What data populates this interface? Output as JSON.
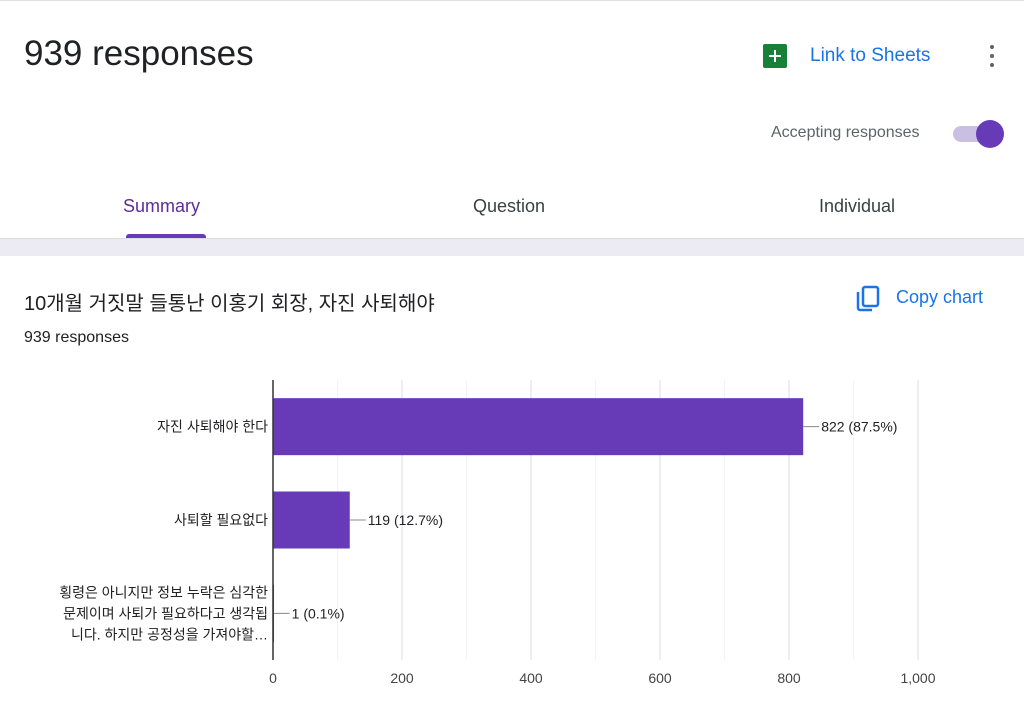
{
  "header": {
    "title": "939 responses",
    "link_sheets_label": "Link to Sheets",
    "accepting_label": "Accepting responses",
    "accepting_on": true
  },
  "tabs": [
    {
      "label": "Summary",
      "active": true
    },
    {
      "label": "Question",
      "active": false
    },
    {
      "label": "Individual",
      "active": false
    }
  ],
  "question": {
    "title": "10개월 거짓말 들통난 이홍기 회장, 자진 사퇴해야",
    "copy_chart_label": "Copy chart",
    "response_count": "939 responses"
  },
  "colors": {
    "accent": "#673ab7",
    "link": "#1a73e8",
    "sheets_green": "#188038"
  },
  "icons": [
    "sheets-icon",
    "more-vert-icon",
    "copy-icon"
  ],
  "chart_data": {
    "type": "bar",
    "orientation": "horizontal",
    "categories": [
      [
        "자진 사퇴해야 한다"
      ],
      [
        "사퇴할 필요없다"
      ],
      [
        "횡령은 아니지만 정보 누락은 심각한",
        "문제이며 사퇴가 필요하다고 생각됩",
        "니다. 하지만 공정성을 가져야할…"
      ]
    ],
    "values": [
      822,
      119,
      1
    ],
    "data_labels": [
      "822 (87.5%)",
      "119 (12.7%)",
      "1 (0.1%)"
    ],
    "xlim": [
      0,
      1000
    ],
    "xticks": [
      0,
      200,
      400,
      600,
      800,
      1000
    ],
    "xtick_labels": [
      "0",
      "200",
      "400",
      "600",
      "800",
      "1,000"
    ],
    "bar_color": "#673ab7",
    "grid": true
  }
}
